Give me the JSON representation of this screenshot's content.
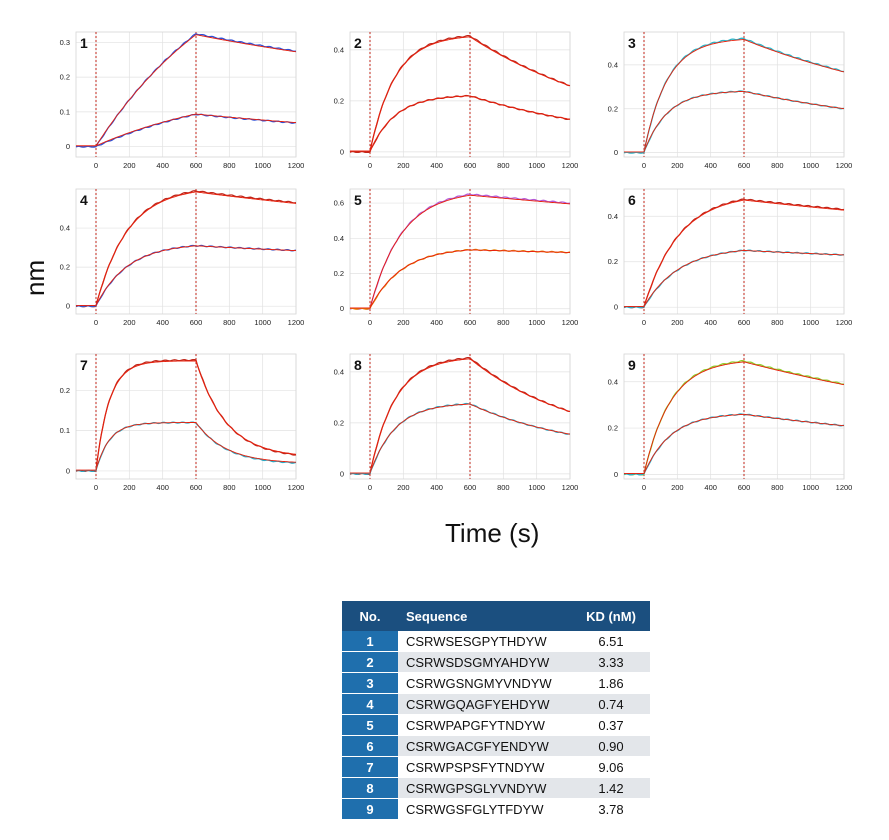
{
  "axes": {
    "ylabel": "nm",
    "xlabel": "Time (s)"
  },
  "colors": {
    "fit": "#e8200c",
    "table_header": "#1b4f7f",
    "table_no": "#1f6fad"
  },
  "chart_data": [
    {
      "type": "line",
      "panel": "1",
      "xlim": [
        -120,
        1200
      ],
      "ylim": [
        -0.03,
        0.33
      ],
      "xticks": [
        0,
        200,
        400,
        600,
        800,
        1000,
        1200
      ],
      "yticks": [
        0,
        0.1,
        0.2,
        0.3
      ],
      "ytick_labels": [
        "0",
        "0.1",
        "0.2",
        "0.3"
      ],
      "markers": [
        0,
        600
      ],
      "kinetics": {
        "tau": 850,
        "kd_tau": 2000,
        "end": 600
      },
      "series": [
        {
          "color": "#2e4fd6",
          "peak": 0.325,
          "end": 0.275
        },
        {
          "color": "#2e4fd6",
          "peak": 0.093,
          "end": 0.068
        }
      ]
    },
    {
      "type": "line",
      "panel": "2",
      "xlim": [
        -120,
        1200
      ],
      "ylim": [
        -0.02,
        0.47
      ],
      "xticks": [
        0,
        200,
        400,
        600,
        800,
        1000,
        1200
      ],
      "yticks": [
        0,
        0.2,
        0.4
      ],
      "ytick_labels": [
        "0",
        "0.2",
        "0.4"
      ],
      "markers": [
        0,
        600
      ],
      "kinetics": {
        "tau": 150,
        "kd_tau": 1000,
        "end": 600
      },
      "series": [
        {
          "color": "#c0261a",
          "peak": 0.455,
          "end": 0.26
        },
        {
          "color": "#c0261a",
          "peak": 0.22,
          "end": 0.127
        }
      ]
    },
    {
      "type": "line",
      "panel": "3",
      "xlim": [
        -120,
        1200
      ],
      "ylim": [
        -0.02,
        0.55
      ],
      "xticks": [
        0,
        200,
        400,
        600,
        800,
        1000,
        1200
      ],
      "yticks": [
        0,
        0.2,
        0.4
      ],
      "ytick_labels": [
        "0",
        "0.2",
        "0.4"
      ],
      "markers": [
        0,
        600
      ],
      "kinetics": {
        "tau": 140,
        "kd_tau": 1300,
        "end": 600
      },
      "series": [
        {
          "color": "#2bb6c9",
          "peak": 0.52,
          "end": 0.37
        },
        {
          "color": "#2bb6c9",
          "peak": 0.28,
          "end": 0.2
        }
      ]
    },
    {
      "type": "line",
      "panel": "4",
      "xlim": [
        -120,
        1200
      ],
      "ylim": [
        -0.04,
        0.6
      ],
      "xticks": [
        0,
        200,
        400,
        600,
        800,
        1000,
        1200
      ],
      "yticks": [
        0,
        0.2,
        0.4
      ],
      "ytick_labels": [
        "0",
        "0.2",
        "0.4"
      ],
      "markers": [
        0,
        600
      ],
      "kinetics": {
        "tau": 190,
        "kd_tau": 2300,
        "end": 600
      },
      "series": [
        {
          "color": "#c0261a",
          "peak": 0.59,
          "end": 0.53
        },
        {
          "color": "#3a55c8",
          "peak": 0.31,
          "end": 0.285
        }
      ]
    },
    {
      "type": "line",
      "panel": "5",
      "xlim": [
        -120,
        1200
      ],
      "ylim": [
        -0.03,
        0.68
      ],
      "xticks": [
        0,
        200,
        400,
        600,
        800,
        1000,
        1200
      ],
      "yticks": [
        0,
        0.2,
        0.4,
        0.6
      ],
      "ytick_labels": [
        "0",
        "0.2",
        "0.4",
        "0.6"
      ],
      "markers": [
        0,
        600
      ],
      "kinetics": {
        "tau": 190,
        "kd_tau": 6000,
        "end": 600
      },
      "series": [
        {
          "color": "#b55ad6",
          "peak": 0.65,
          "end": 0.6
        },
        {
          "color": "#e58a0c",
          "peak": 0.335,
          "end": 0.32
        }
      ]
    },
    {
      "type": "line",
      "panel": "6",
      "xlim": [
        -120,
        1200
      ],
      "ylim": [
        -0.03,
        0.52
      ],
      "xticks": [
        0,
        200,
        400,
        600,
        800,
        1000,
        1200
      ],
      "yticks": [
        0,
        0.2,
        0.4
      ],
      "ytick_labels": [
        "0",
        "0.2",
        "0.4"
      ],
      "markers": [
        0,
        600
      ],
      "kinetics": {
        "tau": 210,
        "kd_tau": 3200,
        "end": 600
      },
      "series": [
        {
          "color": "#c0261a",
          "peak": 0.475,
          "end": 0.43
        },
        {
          "color": "#2aa8c4",
          "peak": 0.25,
          "end": 0.23
        }
      ]
    },
    {
      "type": "line",
      "panel": "7",
      "xlim": [
        -120,
        1200
      ],
      "ylim": [
        -0.02,
        0.29
      ],
      "xticks": [
        0,
        200,
        400,
        600,
        800,
        1000,
        1200
      ],
      "yticks": [
        0,
        0.1,
        0.2
      ],
      "ytick_labels": [
        "0",
        "0.1",
        "0.2"
      ],
      "markers": [
        0,
        600
      ],
      "kinetics": {
        "tau": 80,
        "kd_tau": 180,
        "end": 600
      },
      "series": [
        {
          "color": "#c0261a",
          "peak": 0.275,
          "end": 0.04
        },
        {
          "color": "#2aa8c4",
          "peak": 0.12,
          "end": 0.02
        }
      ]
    },
    {
      "type": "line",
      "panel": "8",
      "xlim": [
        -120,
        1200
      ],
      "ylim": [
        -0.02,
        0.47
      ],
      "xticks": [
        0,
        200,
        400,
        600,
        800,
        1000,
        1200
      ],
      "yticks": [
        0,
        0.2,
        0.4
      ],
      "ytick_labels": [
        "0",
        "0.2",
        "0.4"
      ],
      "markers": [
        0,
        600
      ],
      "kinetics": {
        "tau": 150,
        "kd_tau": 650,
        "end": 600
      },
      "series": [
        {
          "color": "#c0261a",
          "peak": 0.455,
          "end": 0.245
        },
        {
          "color": "#2aa8c4",
          "peak": 0.275,
          "end": 0.155
        }
      ]
    },
    {
      "type": "line",
      "panel": "9",
      "xlim": [
        -120,
        1200
      ],
      "ylim": [
        -0.02,
        0.52
      ],
      "xticks": [
        0,
        200,
        400,
        600,
        800,
        1000,
        1200
      ],
      "yticks": [
        0,
        0.2,
        0.4
      ],
      "ytick_labels": [
        "0",
        "0.2",
        "0.4"
      ],
      "markers": [
        0,
        600
      ],
      "kinetics": {
        "tau": 160,
        "kd_tau": 2200,
        "end": 600
      },
      "series": [
        {
          "color": "#8fce2c",
          "peak": 0.49,
          "end": 0.39
        },
        {
          "color": "#2aa8c4",
          "peak": 0.26,
          "end": 0.21
        }
      ]
    }
  ],
  "table": {
    "headers": {
      "no": "No.",
      "sequence": "Sequence",
      "kd": "KD (nM)"
    },
    "rows": [
      {
        "no": "1",
        "sequence": "CSRWSESGPYTHDYW",
        "kd": "6.51"
      },
      {
        "no": "2",
        "sequence": "CSRWSDSGMYAHDYW",
        "kd": "3.33"
      },
      {
        "no": "3",
        "sequence": "CSRWGSNGMYVNDYW",
        "kd": "1.86"
      },
      {
        "no": "4",
        "sequence": "CSRWGQAGFYEHDYW",
        "kd": "0.74"
      },
      {
        "no": "5",
        "sequence": "CSRWPAPGFYTNDYW",
        "kd": "0.37"
      },
      {
        "no": "6",
        "sequence": "CSRWGACGFYENDYW",
        "kd": "0.90"
      },
      {
        "no": "7",
        "sequence": "CSRWPSPSFYTNDYW",
        "kd": "9.06"
      },
      {
        "no": "8",
        "sequence": "CSRWGPSGLYVNDYW",
        "kd": "1.42"
      },
      {
        "no": "9",
        "sequence": "CSRWGSFGLYTFDYW",
        "kd": "3.78"
      }
    ]
  }
}
